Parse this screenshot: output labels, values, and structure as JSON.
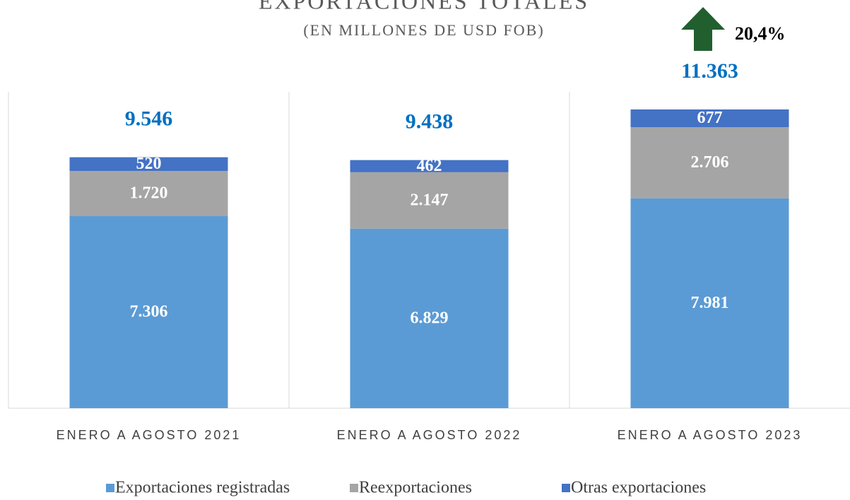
{
  "chart_data": {
    "type": "stacked_bar",
    "title": "EXPORTACIONES TOTALES",
    "subtitle": "(EN MILLONES DE USD FOB)",
    "categories": [
      "ENERO A AGOSTO 2021",
      "ENERO A AGOSTO 2022",
      "ENERO A AGOSTO 2023"
    ],
    "series": [
      {
        "name": "Exportaciones registradas",
        "color": "#5b9bd5",
        "values": [
          7306,
          6829,
          7981
        ],
        "value_labels": [
          "7.306",
          "6.829",
          "7.981"
        ]
      },
      {
        "name": "Reexportaciones",
        "color": "#a5a5a5",
        "values": [
          1720,
          2147,
          2706
        ],
        "value_labels": [
          "1.720",
          "2.147",
          "2.706"
        ]
      },
      {
        "name": "Otras exportaciones",
        "color": "#4472c4",
        "values": [
          520,
          462,
          677
        ],
        "value_labels": [
          "520",
          "462",
          "677"
        ]
      }
    ],
    "totals": {
      "values": [
        9546,
        9438,
        11363
      ],
      "value_labels": [
        "9.546",
        "9.438",
        "11.363"
      ],
      "color": "#0070c0"
    },
    "annotation": "20,4%",
    "annotation_color": "#215f2f",
    "legend": "bottom"
  }
}
